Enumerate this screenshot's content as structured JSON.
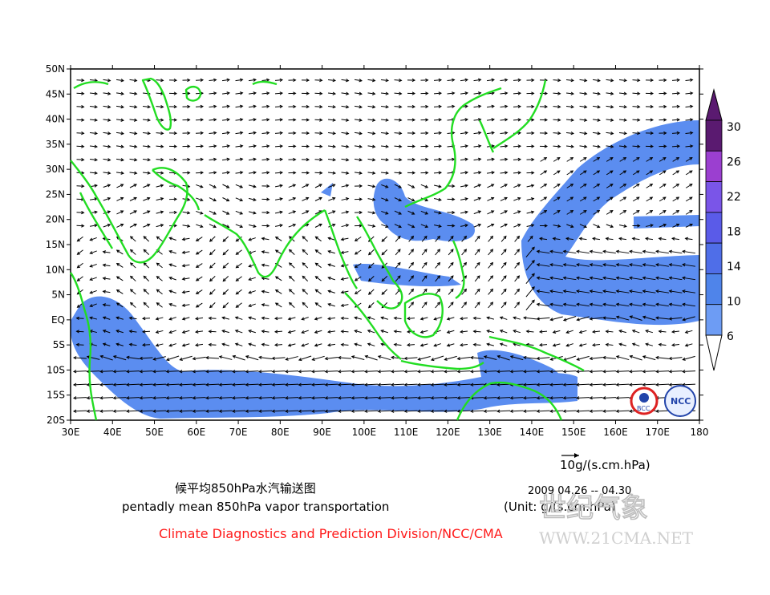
{
  "map": {
    "lon_labels": [
      "30E",
      "40E",
      "50E",
      "60E",
      "70E",
      "80E",
      "90E",
      "100E",
      "110E",
      "120E",
      "130E",
      "140E",
      "150E",
      "160E",
      "170E",
      "180"
    ],
    "lat_labels": [
      "50N",
      "45N",
      "40N",
      "35N",
      "30N",
      "25N",
      "20N",
      "15N",
      "10N",
      "5N",
      "EQ",
      "5S",
      "10S",
      "15S",
      "20S"
    ],
    "lon_range": [
      30,
      180
    ],
    "lat_range": [
      -20,
      50
    ],
    "colors": {
      "shade": "#5b8df0",
      "vector": "#000000",
      "coast": "#22dd22"
    }
  },
  "colorbar": {
    "labels": [
      "30",
      "26",
      "22",
      "18",
      "14",
      "10",
      "6"
    ],
    "colors": [
      "#5a1a70",
      "#9b3fd0",
      "#7a55e8",
      "#5a5be8",
      "#4f6ee8",
      "#4f84ea",
      "#6d9cf4"
    ]
  },
  "reference_vector": {
    "label": "10g/(s.cm.hPa)"
  },
  "caption": {
    "title_cn": "候平均850hPa水汽输送图",
    "title_en": "pentadly mean 850hPa vapor transportation",
    "date": "2009  04.26 -- 04.30",
    "unit": "(Unit: g/(s.cm.hPa)",
    "credit": "Climate Diagnostics and Prediction Division/NCC/CMA"
  },
  "logos": {
    "bcc": "BCC",
    "ncc": "NCC"
  },
  "watermark": {
    "cn": "世纪气象",
    "url": "WWW.21CMA.NET"
  }
}
